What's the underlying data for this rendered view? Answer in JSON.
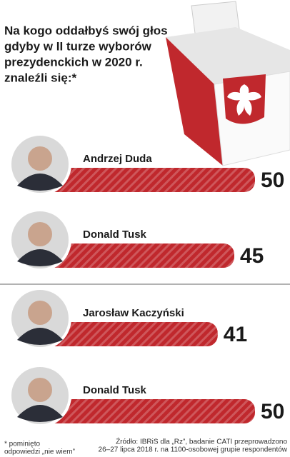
{
  "title": [
    "Na kogo oddałbyś swój głos",
    "gdyby w II turze wyborów",
    "prezydenckich w 2020 r.",
    "znaleźli się:*"
  ],
  "footnote": [
    "* pominięto",
    "odpowiedzi „nie wiem”"
  ],
  "source": [
    "Źródło: IBRiS dla „Rz”, badanie CATI przeprowadzono",
    "26–27 lipca 2018 r. na 1100-osobowej grupie respondentów"
  ],
  "chart_data": [
    {
      "type": "bar",
      "categories": [
        "Andrzej Duda",
        "Donald Tusk"
      ],
      "values": [
        50,
        45
      ],
      "color": "#c0282d",
      "xlim": [
        0,
        50
      ]
    },
    {
      "type": "bar",
      "categories": [
        "Jarosław Kaczyński",
        "Donald Tusk"
      ],
      "values": [
        41,
        50
      ],
      "color": "#c0282d",
      "xlim": [
        0,
        50
      ]
    }
  ]
}
